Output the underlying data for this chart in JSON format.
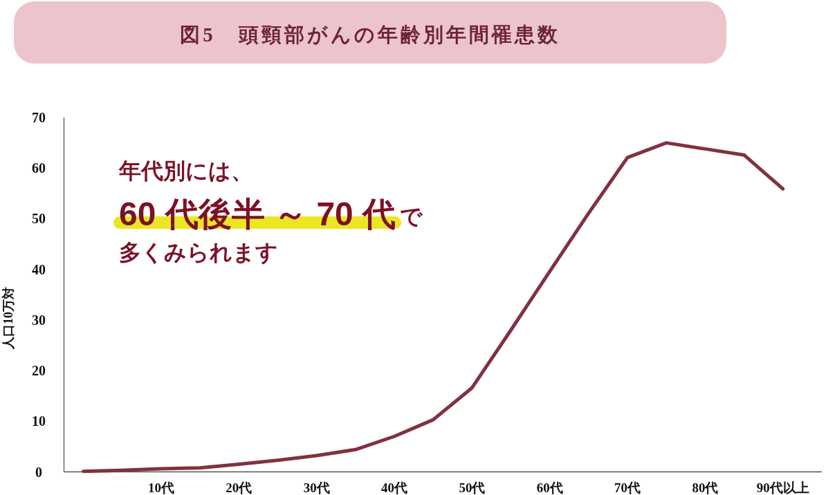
{
  "chart_data": {
    "type": "line",
    "title": "図5　頭頸部がんの年齢別年間罹患数",
    "ylabel": "人口10万対",
    "categories": [
      null,
      null,
      "10代",
      null,
      "20代",
      null,
      "30代",
      null,
      "40代",
      null,
      "50代",
      null,
      "60代",
      null,
      "70代",
      null,
      "80代",
      null,
      "90代以上"
    ],
    "series": [
      {
        "color": "#82313f",
        "values": [
          0.1,
          0.3,
          0.6,
          0.8,
          1.5,
          2.3,
          3.2,
          4.4,
          7.0,
          10.3,
          16.6,
          28.0,
          39.6,
          51.1,
          62.1,
          65.0,
          63.8,
          62.6,
          55.9
        ]
      }
    ],
    "ylim": [
      0,
      70
    ],
    "yticks": [
      0,
      10,
      20,
      30,
      40,
      50,
      60,
      70
    ],
    "marker": "none",
    "line_style": "solid",
    "annotations": [
      "年代別には、",
      "60 代後半 ～ 70 代",
      "で",
      "多くみられます"
    ]
  }
}
